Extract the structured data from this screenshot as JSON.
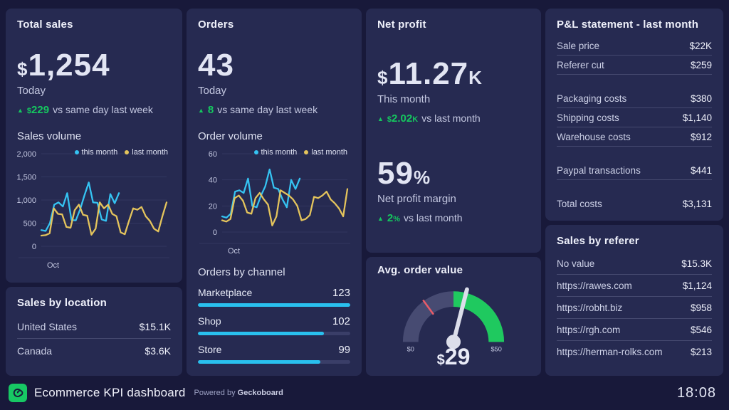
{
  "footer": {
    "title": "Ecommerce KPI dashboard",
    "powered_prefix": "Powered by",
    "brand": "Geckoboard",
    "clock": "18:08"
  },
  "cards": {
    "total_sales": {
      "title": "Total sales",
      "currency": "$",
      "value": "1,254",
      "period": "Today",
      "delta": {
        "arrow": "▲",
        "currency": "$",
        "value": "229",
        "suffix": "",
        "text": "vs same day last week"
      },
      "chart_title": "Sales volume"
    },
    "orders": {
      "title": "Orders",
      "value": "43",
      "period": "Today",
      "delta": {
        "arrow": "▲",
        "currency": "",
        "value": "8",
        "suffix": "",
        "text": "vs same day last week"
      },
      "chart_title": "Order volume",
      "channel_title": "Orders by channel"
    },
    "net_profit": {
      "title": "Net profit",
      "currency": "$",
      "value": "11.27",
      "suffix": "K",
      "period": "This month",
      "delta": {
        "arrow": "▲",
        "currency": "$",
        "value": "2.02",
        "suffix": "K",
        "text": "vs last month"
      },
      "margin": {
        "value": "59",
        "suffix": "%",
        "label": "Net profit margin",
        "delta": {
          "arrow": "▲",
          "currency": "",
          "value": "2",
          "suffix": "%",
          "text": "vs last month"
        }
      }
    },
    "avg_order_value": {
      "title": "Avg. order value",
      "display_currency": "$",
      "display_value": "29"
    },
    "pnl": {
      "title": "P&L statement - last month",
      "rows": [
        {
          "label": "Sale price",
          "value": "$22K"
        },
        {
          "label": "Referer cut",
          "value": "$259"
        },
        {
          "spacer": true
        },
        {
          "label": "Packaging costs",
          "value": "$380"
        },
        {
          "label": "Shipping costs",
          "value": "$1,140"
        },
        {
          "label": "Warehouse costs",
          "value": "$912"
        },
        {
          "spacer": true
        },
        {
          "label": "Paypal transactions",
          "value": "$441"
        },
        {
          "spacer": true
        },
        {
          "label": "Total costs",
          "value": "$3,131"
        }
      ]
    },
    "sales_by_location": {
      "title": "Sales by location",
      "rows": [
        {
          "label": "United States",
          "value": "$15.1K"
        },
        {
          "label": "Canada",
          "value": "$3.6K"
        }
      ]
    },
    "sales_by_referer": {
      "title": "Sales by referer",
      "rows": [
        {
          "label": "No value",
          "value": "$15.3K"
        },
        {
          "label": "https://rawes.com",
          "value": "$1,124"
        },
        {
          "label": "https://robht.biz",
          "value": "$958"
        },
        {
          "label": "https://rgh.com",
          "value": "$546"
        },
        {
          "label": "https://herman-rolks.com",
          "value": "$213"
        }
      ]
    }
  },
  "chart_data": [
    {
      "id": "sales_volume",
      "type": "line",
      "title": "Sales volume",
      "x_label": "Oct",
      "ylim": [
        0,
        2000
      ],
      "y_ticks": [
        0,
        500,
        1000,
        1500,
        2000
      ],
      "y_tick_labels": [
        "0",
        "500",
        "1,000",
        "1,500",
        "2,000"
      ],
      "grid": true,
      "legend_position": "top-right",
      "series": [
        {
          "name": "this month",
          "color": "#35c3f2",
          "x_end": 0.62,
          "values": [
            350,
            330,
            500,
            900,
            950,
            860,
            1150,
            570,
            560,
            800,
            1100,
            1380,
            950,
            940,
            580,
            550,
            1130,
            930,
            1150
          ]
        },
        {
          "name": "last month",
          "color": "#e4c45c",
          "x_end": 1.0,
          "values": [
            230,
            240,
            280,
            820,
            700,
            690,
            420,
            400,
            780,
            900,
            680,
            660,
            250,
            380,
            950,
            820,
            900,
            700,
            650,
            300,
            260,
            550,
            820,
            790,
            850,
            650,
            550,
            380,
            320,
            650,
            950
          ]
        }
      ]
    },
    {
      "id": "order_volume",
      "type": "line",
      "title": "Order volume",
      "x_label": "Oct",
      "ylim": [
        0,
        60
      ],
      "y_ticks": [
        0,
        20,
        40,
        60
      ],
      "y_tick_labels": [
        "0",
        "20",
        "40",
        "60"
      ],
      "grid": true,
      "legend_position": "top-right",
      "series": [
        {
          "name": "this month",
          "color": "#35c3f2",
          "x_end": 0.62,
          "values": [
            12,
            11,
            14,
            31,
            32,
            30,
            41,
            20,
            19,
            28,
            35,
            48,
            34,
            33,
            25,
            19,
            40,
            33,
            41
          ]
        },
        {
          "name": "last month",
          "color": "#e4c45c",
          "x_end": 1.0,
          "values": [
            9,
            8,
            10,
            26,
            28,
            24,
            15,
            14,
            26,
            30,
            25,
            21,
            5,
            12,
            32,
            30,
            28,
            25,
            20,
            9,
            10,
            13,
            27,
            26,
            28,
            31,
            25,
            22,
            18,
            12,
            33
          ]
        }
      ]
    },
    {
      "id": "orders_by_channel",
      "type": "bar",
      "title": "Orders by channel",
      "max": 123,
      "bar_color": "#29c0ee",
      "bars": [
        {
          "label": "Marketplace",
          "value": 123,
          "display": "123"
        },
        {
          "label": "Shop",
          "value": 102,
          "display": "102"
        },
        {
          "label": "Store",
          "value": 99,
          "display": "99"
        }
      ]
    },
    {
      "id": "avg_order_value",
      "type": "gauge",
      "title": "Avg. order value",
      "min": 0,
      "max": 50,
      "value": 29,
      "min_label": "$0",
      "max_label": "$50",
      "zones": [
        {
          "from": 0,
          "to": 25,
          "color": "#474b72"
        },
        {
          "from": 25,
          "to": 50,
          "color": "#1fc95f"
        }
      ],
      "threshold": {
        "value": 15,
        "color": "#e85b68"
      },
      "needle_color": "#dcdeea"
    }
  ]
}
